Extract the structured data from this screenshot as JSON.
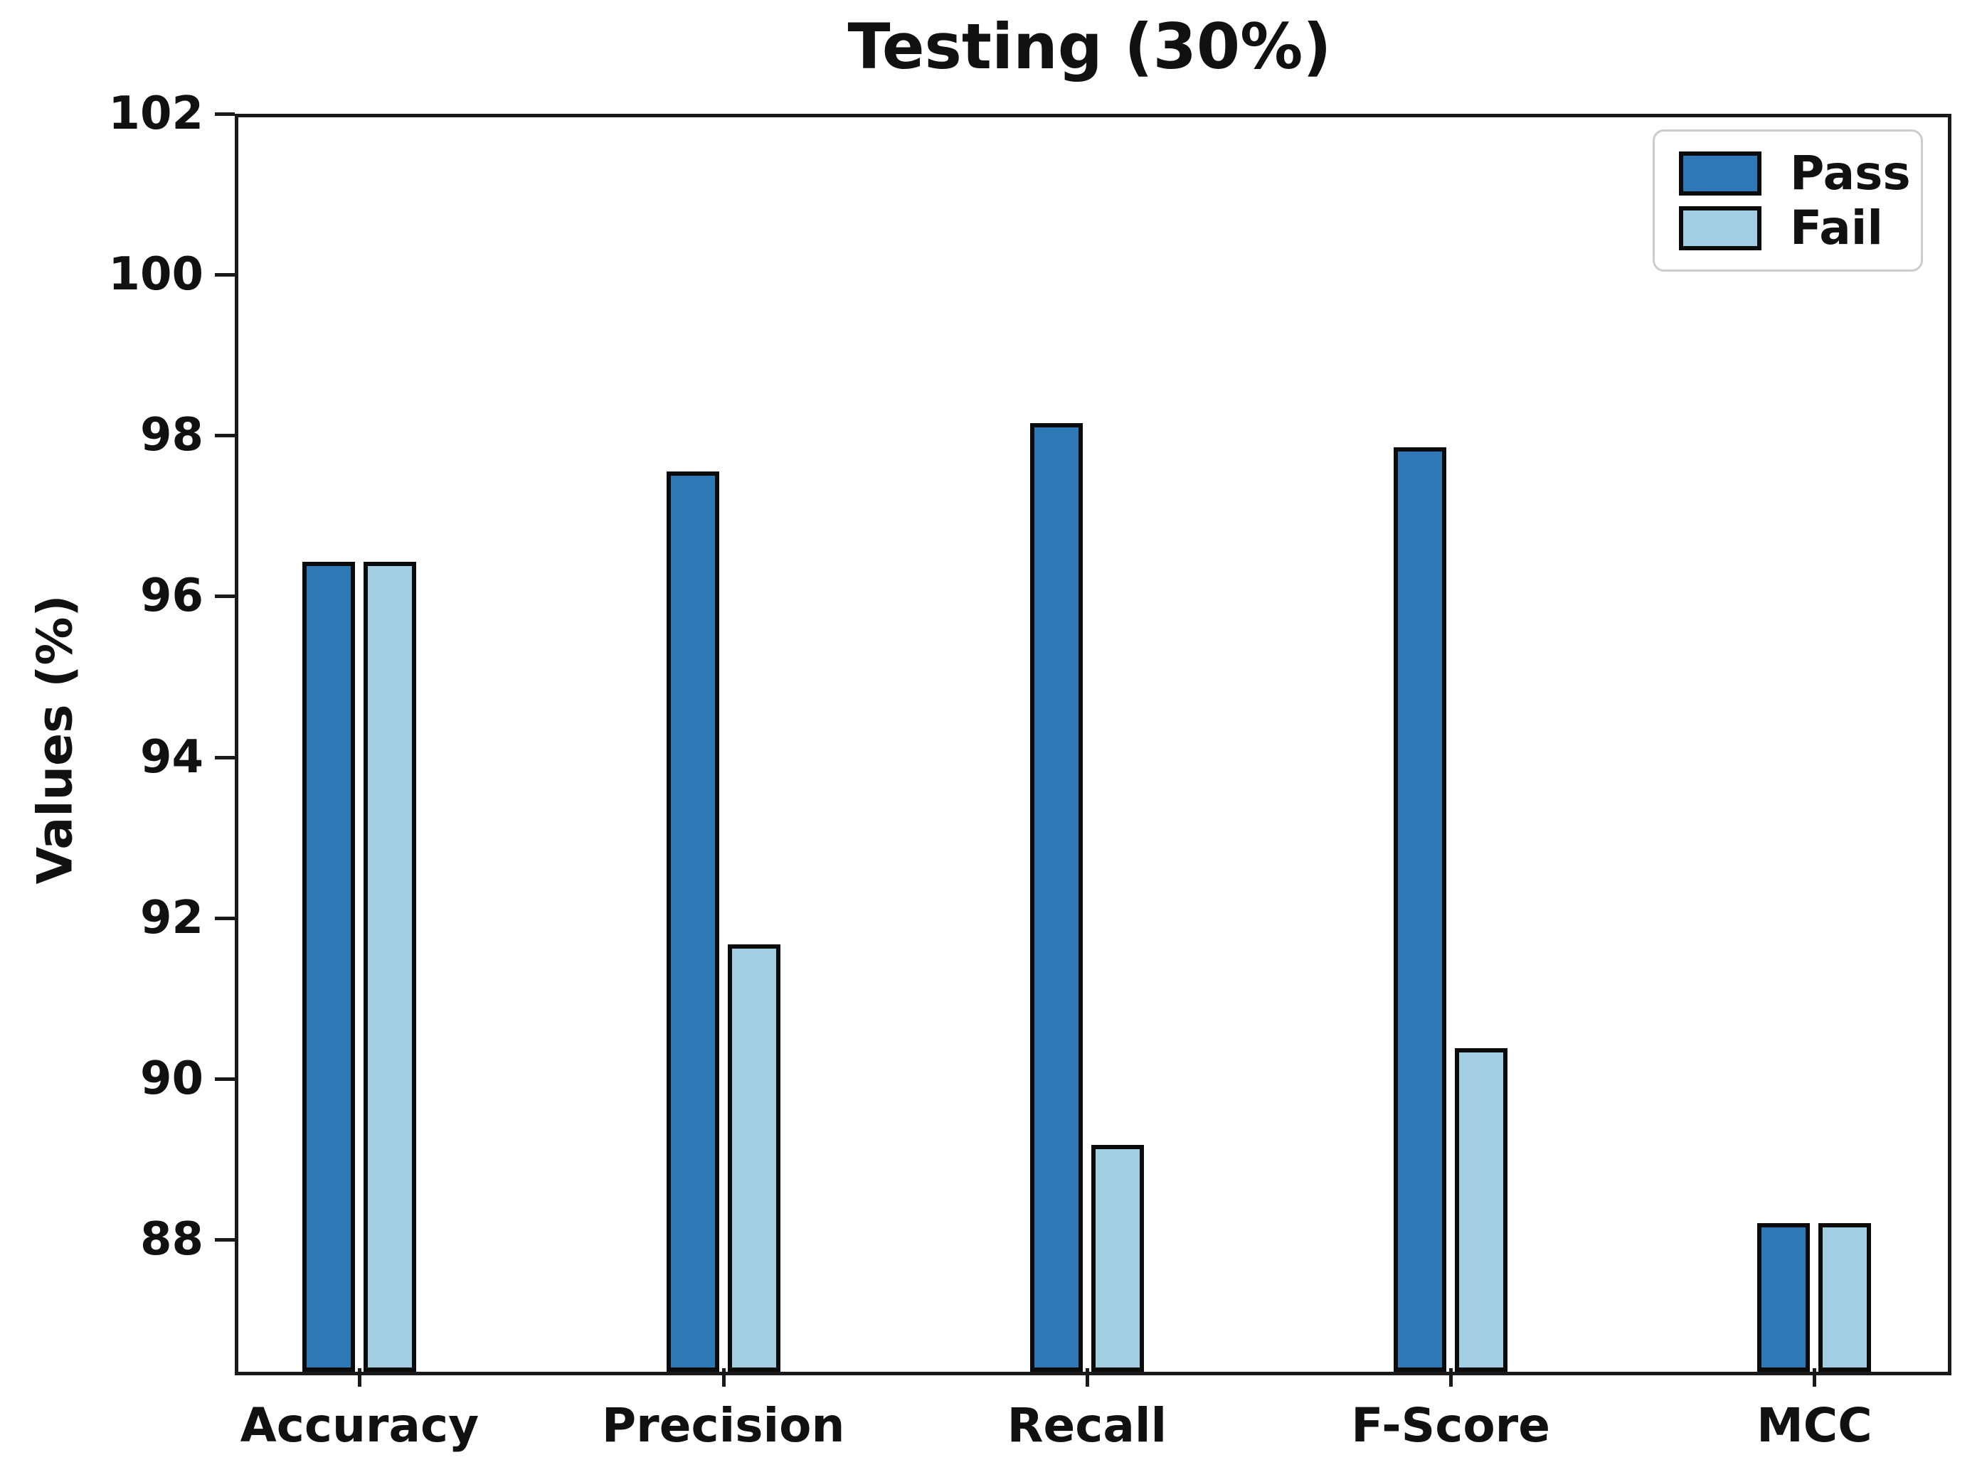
{
  "chart_data": {
    "type": "bar",
    "title": "Testing (30%)",
    "xlabel": "",
    "ylabel": "Values (%)",
    "categories": [
      "Accuracy",
      "Precision",
      "Recall",
      "F-Score",
      "MCC"
    ],
    "series": [
      {
        "name": "Pass",
        "color": "#2e78b5",
        "values": [
          96.43,
          97.55,
          98.15,
          97.85,
          88.2
        ]
      },
      {
        "name": "Fail",
        "color": "#a3cde3",
        "values": [
          96.43,
          91.67,
          89.18,
          90.38,
          88.2
        ]
      }
    ],
    "bar_edge_color": "#0b0b0b",
    "ylim": [
      86.4,
      102
    ],
    "yticks": [
      88,
      90,
      92,
      94,
      96,
      98,
      100,
      102
    ],
    "grid": false,
    "legend_position": "upper right",
    "legend_labels": [
      "Pass",
      "Fail"
    ],
    "background_color": "#ffffff"
  }
}
